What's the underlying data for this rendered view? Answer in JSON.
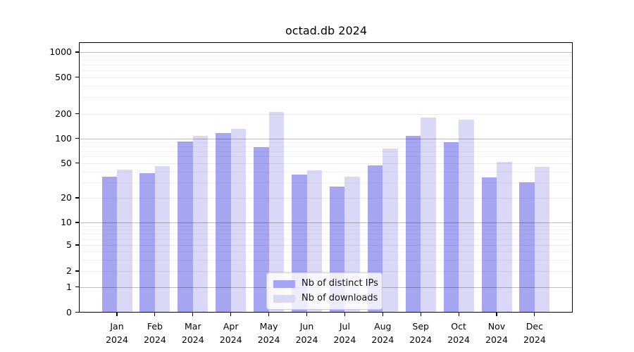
{
  "chart_data": {
    "type": "bar",
    "title": "octad.db 2024",
    "categories": [
      "Jan",
      "Feb",
      "Mar",
      "Apr",
      "May",
      "Jun",
      "Jul",
      "Aug",
      "Sep",
      "Oct",
      "Nov",
      "Dec"
    ],
    "category_year": "2024",
    "series": [
      {
        "name": "Nb of distinct IPs",
        "color": "#a5a5f2",
        "values": [
          35,
          38,
          92,
          115,
          78,
          37,
          27,
          47,
          108,
          90,
          34,
          30
        ]
      },
      {
        "name": "Nb of downloads",
        "color": "#d9d9f7",
        "values": [
          42,
          46,
          108,
          130,
          210,
          41,
          35,
          75,
          180,
          170,
          52,
          45
        ]
      }
    ],
    "yscale": "symlog",
    "yticks": [
      0,
      1,
      2,
      5,
      10,
      20,
      50,
      100,
      200,
      500,
      1000
    ],
    "ylabel": "",
    "xlabel": "",
    "grid": true,
    "legend_position": "lower center",
    "background_color": "#ffffff"
  }
}
